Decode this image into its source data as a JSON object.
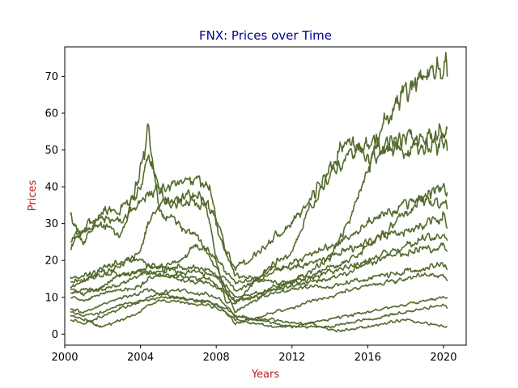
{
  "chart_data": {
    "type": "line",
    "title": "FNX: Prices over Time",
    "xlabel": "Years",
    "ylabel": "Prices",
    "xlim": [
      2000.0,
      2021.2
    ],
    "ylim": [
      -3,
      78
    ],
    "x_ticks": [
      2000,
      2004,
      2008,
      2012,
      2016,
      2020
    ],
    "y_ticks": [
      0,
      10,
      20,
      30,
      40,
      50,
      60,
      70
    ],
    "grid": false,
    "legend": "none",
    "colors": {
      "series": "#556b2f",
      "title": "#00008b",
      "axis_label": "#b22222"
    },
    "series": [
      {
        "x": [
          2000.3,
          2001.0,
          2002.0,
          2003.0,
          2004.0,
          2004.4,
          2005.0,
          2006.0,
          2007.0,
          2007.5,
          2008.0,
          2008.5,
          2009.0,
          2010.0,
          2011.0,
          2012.0,
          2013.0,
          2014.0,
          2015.0,
          2016.0,
          2017.0,
          2018.0,
          2019.0,
          2020.0,
          2020.2
        ],
        "values": [
          32,
          25,
          33,
          34,
          39,
          48,
          39,
          35,
          36,
          34,
          20,
          9,
          8,
          14,
          19,
          22,
          35,
          43,
          49,
          51,
          52,
          53,
          53,
          55,
          56
        ]
      },
      {
        "x": [
          2000.3,
          2001.0,
          2002.0,
          2003.0,
          2004.0,
          2004.4,
          2005.0,
          2006.0,
          2007.0,
          2007.5,
          2008.0,
          2008.5,
          2009.0,
          2010.0,
          2011.0,
          2012.0,
          2013.0,
          2014.0,
          2015.0,
          2016.0,
          2017.0,
          2018.0,
          2019.0,
          2020.0,
          2020.2
        ],
        "values": [
          24,
          29,
          32,
          30,
          36,
          38,
          40,
          41,
          41,
          41,
          32,
          23,
          18,
          21,
          26,
          30,
          37,
          46,
          53,
          47,
          50,
          50,
          51,
          52,
          52
        ]
      },
      {
        "x": [
          2000.3,
          2001.0,
          2002.0,
          2003.0,
          2004.0,
          2004.4,
          2005.0,
          2006.0,
          2007.0,
          2007.5,
          2008.0,
          2008.5,
          2009.0,
          2010.0,
          2011.0,
          2012.0,
          2013.0,
          2014.0,
          2015.0,
          2016.0,
          2017.0,
          2018.0,
          2019.0,
          2020.0,
          2020.2
        ],
        "values": [
          26,
          28,
          30,
          27,
          44,
          56,
          33,
          30,
          26,
          22,
          18,
          12,
          6,
          9,
          12,
          14,
          17,
          21,
          30,
          45,
          59,
          66,
          70,
          72,
          74
        ]
      },
      {
        "x": [
          2000.3,
          2001.0,
          2002.0,
          2003.0,
          2004.0,
          2004.4,
          2005.0,
          2006.0,
          2007.0,
          2007.5,
          2008.0,
          2008.5,
          2009.0,
          2010.0,
          2011.0,
          2012.0,
          2013.0,
          2014.0,
          2015.0,
          2016.0,
          2017.0,
          2018.0,
          2019.0,
          2020.0,
          2020.2
        ],
        "values": [
          14,
          15,
          16,
          19,
          23,
          30,
          35,
          37,
          38,
          36,
          30,
          22,
          16,
          15,
          14,
          14,
          16,
          18,
          20,
          24,
          28,
          33,
          37,
          40,
          38
        ]
      },
      {
        "x": [
          2000.3,
          2001.0,
          2002.0,
          2003.0,
          2004.0,
          2004.4,
          2005.0,
          2006.0,
          2007.0,
          2007.5,
          2008.0,
          2008.5,
          2009.0,
          2010.0,
          2011.0,
          2012.0,
          2013.0,
          2014.0,
          2015.0,
          2016.0,
          2017.0,
          2018.0,
          2019.0,
          2020.0,
          2020.2
        ],
        "values": [
          13,
          14,
          18,
          20,
          20,
          19,
          18,
          17,
          17,
          16,
          16,
          15,
          12,
          14,
          17,
          19,
          22,
          24,
          26,
          30,
          33,
          35,
          36,
          36,
          34
        ]
      },
      {
        "x": [
          2000.3,
          2001.0,
          2002.0,
          2003.0,
          2004.0,
          2004.4,
          2005.0,
          2006.0,
          2007.0,
          2007.5,
          2008.0,
          2008.5,
          2009.0,
          2010.0,
          2011.0,
          2012.0,
          2013.0,
          2014.0,
          2015.0,
          2016.0,
          2017.0,
          2018.0,
          2019.0,
          2020.0,
          2020.2
        ],
        "values": [
          12,
          11,
          13,
          16,
          17,
          18,
          18,
          20,
          24,
          23,
          21,
          17,
          14,
          15,
          18,
          18,
          19,
          21,
          23,
          25,
          27,
          28,
          30,
          32,
          29
        ]
      },
      {
        "x": [
          2000.3,
          2001.0,
          2002.0,
          2003.0,
          2004.0,
          2004.4,
          2005.0,
          2006.0,
          2007.0,
          2007.5,
          2008.0,
          2008.5,
          2009.0,
          2010.0,
          2011.0,
          2012.0,
          2013.0,
          2014.0,
          2015.0,
          2016.0,
          2017.0,
          2018.0,
          2019.0,
          2020.0,
          2020.2
        ],
        "values": [
          10,
          9,
          11,
          12,
          13,
          15,
          16,
          16,
          15,
          15,
          13,
          11,
          9,
          10,
          13,
          14,
          15,
          17,
          18,
          20,
          22,
          24,
          26,
          27,
          25
        ]
      },
      {
        "x": [
          2000.3,
          2001.0,
          2002.0,
          2003.0,
          2004.0,
          2004.4,
          2005.0,
          2006.0,
          2007.0,
          2007.5,
          2008.0,
          2008.5,
          2009.0,
          2010.0,
          2011.0,
          2012.0,
          2013.0,
          2014.0,
          2015.0,
          2016.0,
          2017.0,
          2018.0,
          2019.0,
          2020.0,
          2020.2
        ],
        "values": [
          15,
          16,
          17,
          16,
          17,
          17,
          16,
          15,
          14,
          14,
          13,
          12,
          9,
          10,
          11,
          12,
          13,
          13,
          14,
          15,
          16,
          17,
          18,
          19,
          17
        ]
      },
      {
        "x": [
          2000.3,
          2001.0,
          2002.0,
          2003.0,
          2004.0,
          2004.4,
          2005.0,
          2006.0,
          2007.0,
          2007.5,
          2008.0,
          2008.5,
          2009.0,
          2010.0,
          2011.0,
          2012.0,
          2013.0,
          2014.0,
          2015.0,
          2016.0,
          2017.0,
          2018.0,
          2019.0,
          2020.0,
          2020.2
        ],
        "values": [
          7,
          6,
          8,
          10,
          11,
          12,
          11,
          10,
          9,
          9,
          8,
          6,
          3,
          4,
          6,
          7,
          9,
          10,
          12,
          13,
          14,
          15,
          16,
          16,
          14
        ]
      },
      {
        "x": [
          2000.3,
          2001.0,
          2002.0,
          2003.0,
          2004.0,
          2004.4,
          2005.0,
          2006.0,
          2007.0,
          2007.5,
          2008.0,
          2008.5,
          2009.0,
          2010.0,
          2011.0,
          2012.0,
          2013.0,
          2014.0,
          2015.0,
          2016.0,
          2017.0,
          2018.0,
          2019.0,
          2020.0,
          2020.2
        ],
        "values": [
          5,
          4,
          2,
          4,
          6,
          8,
          9,
          9,
          8,
          8,
          7,
          6,
          4,
          3,
          2,
          2,
          3,
          4,
          5,
          6,
          7,
          8,
          9,
          10,
          10
        ]
      },
      {
        "x": [
          2000.3,
          2001.0,
          2002.0,
          2003.0,
          2004.0,
          2004.4,
          2005.0,
          2006.0,
          2007.0,
          2007.5,
          2008.0,
          2008.5,
          2009.0,
          2010.0,
          2011.0,
          2012.0,
          2013.0,
          2014.0,
          2015.0,
          2016.0,
          2017.0,
          2018.0,
          2019.0,
          2020.0,
          2020.2
        ],
        "values": [
          4,
          3,
          5,
          7,
          9,
          10,
          11,
          12,
          11,
          11,
          10,
          8,
          5,
          4,
          3,
          2,
          2,
          2,
          3,
          4,
          5,
          6,
          7,
          8,
          7
        ]
      },
      {
        "x": [
          2000.3,
          2001.0,
          2002.0,
          2003.0,
          2004.0,
          2004.4,
          2005.0,
          2006.0,
          2007.0,
          2007.5,
          2008.0,
          2008.5,
          2009.0,
          2010.0,
          2011.0,
          2012.0,
          2013.0,
          2014.0,
          2015.0,
          2016.0,
          2017.0,
          2018.0,
          2019.0,
          2020.0,
          2020.2
        ],
        "values": [
          6,
          5,
          6,
          8,
          9,
          9,
          10,
          10,
          9,
          9,
          8,
          7,
          5,
          4,
          4,
          3,
          3,
          1,
          1,
          2,
          3,
          4,
          3,
          2,
          2
        ]
      },
      {
        "x": [
          2000.3,
          2001.0,
          2002.0,
          2003.0,
          2004.0,
          2004.4,
          2005.0,
          2006.0,
          2007.0,
          2007.5,
          2008.0,
          2008.5,
          2009.0,
          2010.0,
          2011.0,
          2012.0,
          2013.0,
          2014.0,
          2015.0,
          2016.0,
          2017.0,
          2018.0,
          2019.0,
          2020.0,
          2020.2
        ],
        "values": [
          11,
          12,
          12,
          14,
          16,
          17,
          17,
          18,
          18,
          17,
          16,
          13,
          10,
          11,
          12,
          13,
          14,
          15,
          17,
          19,
          21,
          22,
          23,
          24,
          22
        ]
      }
    ]
  }
}
